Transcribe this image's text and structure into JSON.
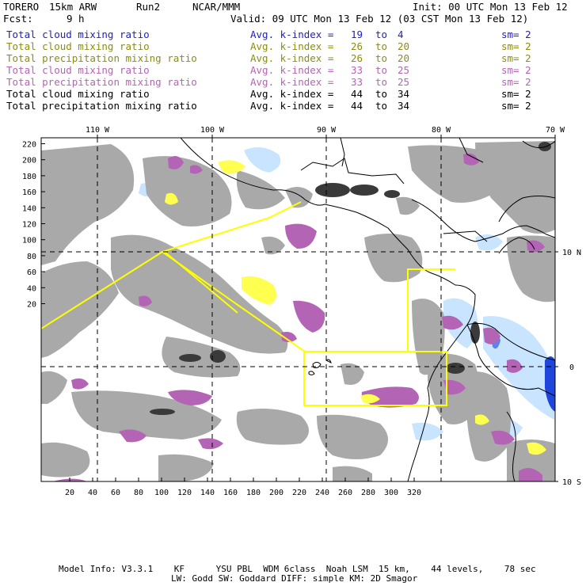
{
  "header": {
    "model": "TORERO",
    "resolution": "15km ARW",
    "run": "Run2",
    "org": "NCAR/MMM",
    "init": "Init: 00 UTC Mon 13 Feb 12",
    "fcst_label": "Fcst:",
    "fcst_value": "9 h",
    "valid": "Valid: 09 UTC Mon 13 Feb 12 (03 CST Mon 13 Feb 12)"
  },
  "legend": [
    {
      "field": "Total cloud mixing ratio",
      "k1": "19",
      "k2": "4",
      "sm": "sm= 2",
      "color": "#2020c8"
    },
    {
      "field": "Total cloud mixing ratio",
      "k1": "26",
      "k2": "20",
      "sm": "sm= 2",
      "color": "#8c8c14"
    },
    {
      "field": "Total precipitation mixing ratio",
      "k1": "26",
      "k2": "20",
      "sm": "sm= 2",
      "color": "#8c8c14"
    },
    {
      "field": "Total cloud mixing ratio",
      "k1": "33",
      "k2": "25",
      "sm": "sm= 2",
      "color": "#b464b4"
    },
    {
      "field": "Total precipitation mixing ratio",
      "k1": "33",
      "k2": "25",
      "sm": "sm= 2",
      "color": "#b464b4"
    },
    {
      "field": "Total cloud mixing ratio",
      "k1": "44",
      "k2": "34",
      "sm": "sm= 2",
      "color": "#000000"
    },
    {
      "field": "Total precipitation mixing ratio",
      "k1": "44",
      "k2": "34",
      "sm": "sm= 2",
      "color": "#000000"
    }
  ],
  "avg_label": "Avg. k-index =",
  "to_label": "to",
  "axes": {
    "top_lon": [
      "110 W",
      "100 W",
      "90 W",
      "80 W",
      "70 W"
    ],
    "right_lat": [
      "10 N",
      "0",
      "10 S"
    ],
    "left_y": [
      "220",
      "200",
      "180",
      "160",
      "140",
      "120",
      "100",
      "80",
      "60",
      "40",
      "20"
    ],
    "bottom_x": [
      "20",
      "40",
      "60",
      "80",
      "100",
      "120",
      "140",
      "160",
      "180",
      "200",
      "220",
      "240",
      "260",
      "280",
      "300",
      "320"
    ]
  },
  "footer": {
    "line1": "Model Info: V3.3.1    KF      YSU PBL  WDM 6class  Noah LSM  15 km,    44 levels,    78 sec",
    "line2": "LW: Godd SW: Goddard DIFF: simple KM: 2D Smagor"
  },
  "colors": {
    "gray_cloud": "#a9a9a9",
    "dark_precip": "#3a3a3a",
    "magenta": "#b464b4",
    "yellow": "#ffff50",
    "light_blue": "#c8e4ff",
    "blue": "#1e46dc",
    "box_line": "#ffff00"
  }
}
